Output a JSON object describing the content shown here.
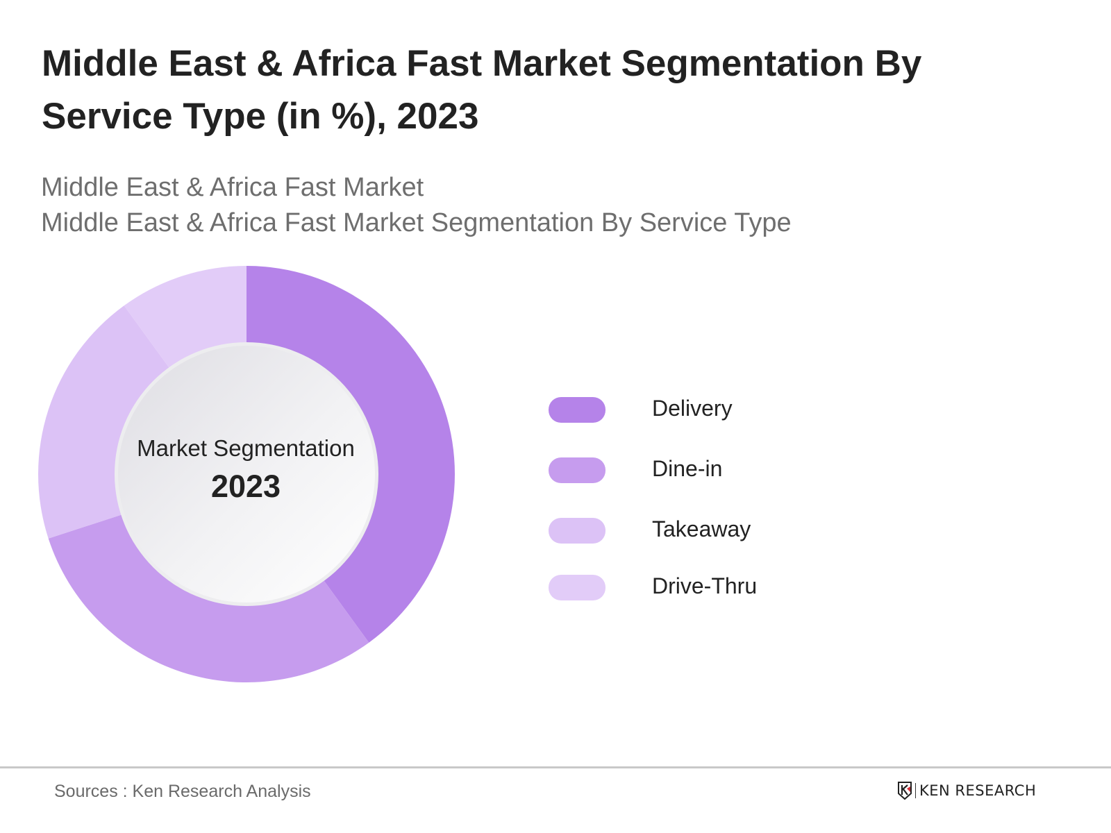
{
  "header": {
    "title": "Middle East & Africa Fast Market Segmentation By Service Type (in %), 2023",
    "subtitle_line1": "Middle East & Africa Fast Market",
    "subtitle_line2": "Middle East & Africa Fast Market Segmentation By Service Type"
  },
  "center_label": {
    "line1": "Market Segmentation",
    "line2": "2023"
  },
  "legend": [
    {
      "label": "Delivery",
      "color": "#b583e9"
    },
    {
      "label": "Dine-in",
      "color": "#c69cee"
    },
    {
      "label": "Takeaway",
      "color": "#dcc2f6"
    },
    {
      "label": "Drive-Thru",
      "color": "#e2ccf8"
    }
  ],
  "footer": {
    "source": "Sources : Ken Research Analysis",
    "logo_text": "KEN RESEARCH"
  },
  "chart_data": {
    "type": "pie",
    "subtype": "donut",
    "title": "Middle East & Africa Fast Market Segmentation By Service Type (in %), 2023",
    "subtitle": "Middle East & Africa Fast Market Segmentation By Service Type",
    "center_text": "Market Segmentation 2023",
    "categories": [
      "Delivery",
      "Dine-in",
      "Takeaway",
      "Drive-Thru"
    ],
    "values": [
      40,
      30,
      20,
      10
    ],
    "unit": "%",
    "colors": [
      "#b583e9",
      "#c69cee",
      "#dcc2f6",
      "#e2ccf8"
    ],
    "start_angle": "12 o'clock, clockwise",
    "legend_position": "right"
  }
}
